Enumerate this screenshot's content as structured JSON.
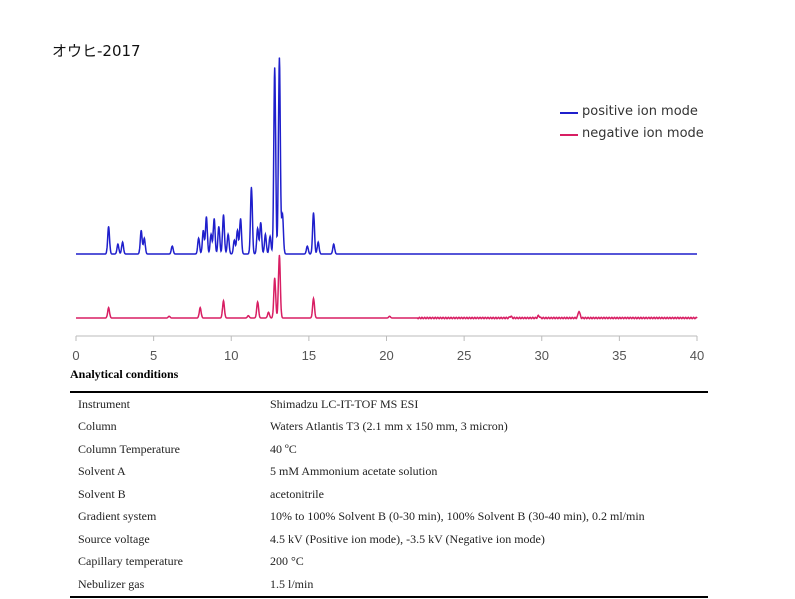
{
  "chart_data": {
    "type": "line",
    "title": "オウヒ-2017",
    "xlabel": "",
    "ylabel": "",
    "xlim": [
      0,
      40
    ],
    "xticks": [
      0,
      5,
      10,
      15,
      20,
      25,
      30,
      35,
      40
    ],
    "grid": false,
    "legend_position": "top-right",
    "series": [
      {
        "name": "positive ion mode",
        "color": "#1f1fcc",
        "baseline_note": "upper trace",
        "peaks": [
          {
            "x": 2.1,
            "y": 0.14
          },
          {
            "x": 2.7,
            "y": 0.05
          },
          {
            "x": 3.0,
            "y": 0.06
          },
          {
            "x": 4.2,
            "y": 0.12
          },
          {
            "x": 4.4,
            "y": 0.08
          },
          {
            "x": 6.2,
            "y": 0.04
          },
          {
            "x": 7.9,
            "y": 0.08
          },
          {
            "x": 8.2,
            "y": 0.12
          },
          {
            "x": 8.4,
            "y": 0.19
          },
          {
            "x": 8.7,
            "y": 0.1
          },
          {
            "x": 8.9,
            "y": 0.18
          },
          {
            "x": 9.2,
            "y": 0.14
          },
          {
            "x": 9.5,
            "y": 0.2
          },
          {
            "x": 9.8,
            "y": 0.1
          },
          {
            "x": 10.2,
            "y": 0.07
          },
          {
            "x": 10.4,
            "y": 0.12
          },
          {
            "x": 10.6,
            "y": 0.18
          },
          {
            "x": 11.3,
            "y": 0.34
          },
          {
            "x": 11.7,
            "y": 0.13
          },
          {
            "x": 11.9,
            "y": 0.16
          },
          {
            "x": 12.2,
            "y": 0.1
          },
          {
            "x": 12.5,
            "y": 0.09
          },
          {
            "x": 12.8,
            "y": 0.95
          },
          {
            "x": 13.1,
            "y": 1.0
          },
          {
            "x": 13.3,
            "y": 0.2
          },
          {
            "x": 14.9,
            "y": 0.04
          },
          {
            "x": 15.3,
            "y": 0.21
          },
          {
            "x": 15.6,
            "y": 0.06
          },
          {
            "x": 16.6,
            "y": 0.05
          }
        ]
      },
      {
        "name": "negative ion mode",
        "color": "#d81e63",
        "baseline_note": "lower trace",
        "peaks": [
          {
            "x": 2.1,
            "y": 0.09
          },
          {
            "x": 6.0,
            "y": 0.015
          },
          {
            "x": 8.0,
            "y": 0.09
          },
          {
            "x": 9.5,
            "y": 0.15
          },
          {
            "x": 11.1,
            "y": 0.02
          },
          {
            "x": 11.7,
            "y": 0.14
          },
          {
            "x": 12.4,
            "y": 0.05
          },
          {
            "x": 12.8,
            "y": 0.35
          },
          {
            "x": 13.1,
            "y": 0.55
          },
          {
            "x": 15.3,
            "y": 0.17
          },
          {
            "x": 20.2,
            "y": 0.015
          },
          {
            "x": 28.0,
            "y": 0.015
          },
          {
            "x": 29.8,
            "y": 0.02
          },
          {
            "x": 32.4,
            "y": 0.06
          }
        ]
      }
    ]
  },
  "conditions": {
    "heading": "Analytical conditions",
    "rows": [
      {
        "label": "Instrument",
        "value": "Shimadzu LC-IT-TOF MS ESI"
      },
      {
        "label": "Column",
        "value": "Waters Atlantis T3 (2.1 mm x 150 mm, 3 micron)"
      },
      {
        "label": "Column Temperature",
        "value": "40 ºC"
      },
      {
        "label": "Solvent A",
        "value": "5 mM Ammonium acetate solution"
      },
      {
        "label": "Solvent B",
        "value": "acetonitrile"
      },
      {
        "label": "Gradient system",
        "value": "10% to 100% Solvent B (0-30 min), 100% Solvent B (30-40 min), 0.2 ml/min"
      },
      {
        "label": "Source voltage",
        "value": "4.5 kV (Positive ion mode), -3.5 kV (Negative ion mode)"
      },
      {
        "label": "Capillary temperature",
        "value": "200 °C"
      },
      {
        "label": "Nebulizer gas",
        "value": "1.5 l/min"
      }
    ]
  }
}
